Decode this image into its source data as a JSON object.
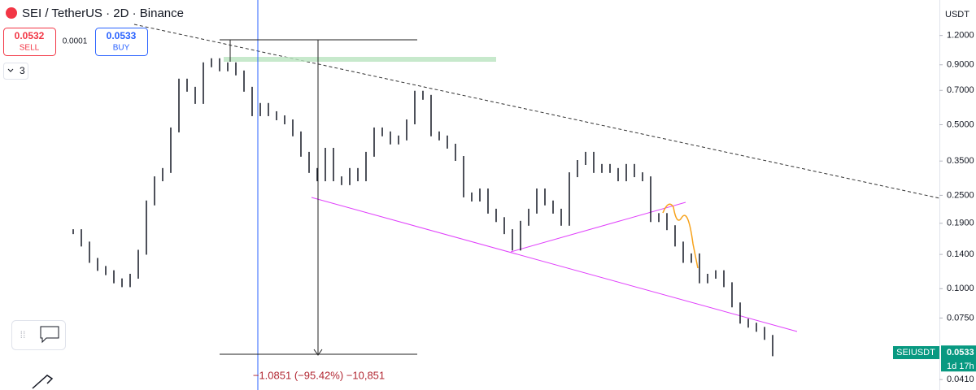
{
  "header": {
    "symbol": "SEI / TetherUS · 2D · Binance",
    "sell_price": "0.0532",
    "sell_label": "SELL",
    "spread": "0.0001",
    "buy_price": "0.0533",
    "buy_label": "BUY",
    "indicators": "3"
  },
  "chart_data": {
    "type": "bar",
    "log_scale": true,
    "axis_unit": "USDT",
    "candle_color": "#131722",
    "ylim": [
      0.037,
      1.7
    ],
    "yticks": [
      {
        "value": 1.2,
        "label": "1.2000"
      },
      {
        "value": 0.9,
        "label": "0.9000"
      },
      {
        "value": 0.7,
        "label": "0.7000"
      },
      {
        "value": 0.5,
        "label": "0.5000"
      },
      {
        "value": 0.35,
        "label": "0.3500"
      },
      {
        "value": 0.25,
        "label": "0.2500"
      },
      {
        "value": 0.19,
        "label": "0.1900"
      },
      {
        "value": 0.14,
        "label": "0.1400"
      },
      {
        "value": 0.1,
        "label": "0.1000"
      },
      {
        "value": 0.075,
        "label": "0.0750"
      },
      {
        "value": 0.041,
        "label": "0.0410"
      }
    ],
    "values": [
      0.175,
      0.155,
      0.132,
      0.122,
      0.117,
      0.108,
      0.104,
      0.113,
      0.143,
      0.232,
      0.294,
      0.319,
      0.475,
      0.767,
      0.708,
      0.628,
      0.9,
      0.937,
      0.865,
      0.9,
      0.831,
      0.708,
      0.557,
      0.604,
      0.557,
      0.535,
      0.514,
      0.457,
      0.374,
      0.319,
      0.294,
      0.389,
      0.294,
      0.283,
      0.319,
      0.294,
      0.374,
      0.475,
      0.457,
      0.422,
      0.439,
      0.514,
      0.681,
      0.654,
      0.457,
      0.439,
      0.405,
      0.359,
      0.251,
      0.241,
      0.261,
      0.214,
      0.197,
      0.175,
      0.149,
      0.19,
      0.214,
      0.261,
      0.232,
      0.214,
      0.19,
      0.306,
      0.345,
      0.374,
      0.319,
      0.332,
      0.319,
      0.294,
      0.332,
      0.306,
      0.294,
      0.197,
      0.205,
      0.182,
      0.155,
      0.132,
      0.138,
      0.108,
      0.113,
      0.117,
      0.104,
      0.0853,
      0.0727,
      0.0699,
      0.0671,
      0.062,
      0.0528
    ],
    "measure_label": "−1.0851 (−95.42%) −10,851",
    "symbol_tag": "SEIUSDT",
    "last_price": 0.0533,
    "countdown": "1d 17h"
  }
}
